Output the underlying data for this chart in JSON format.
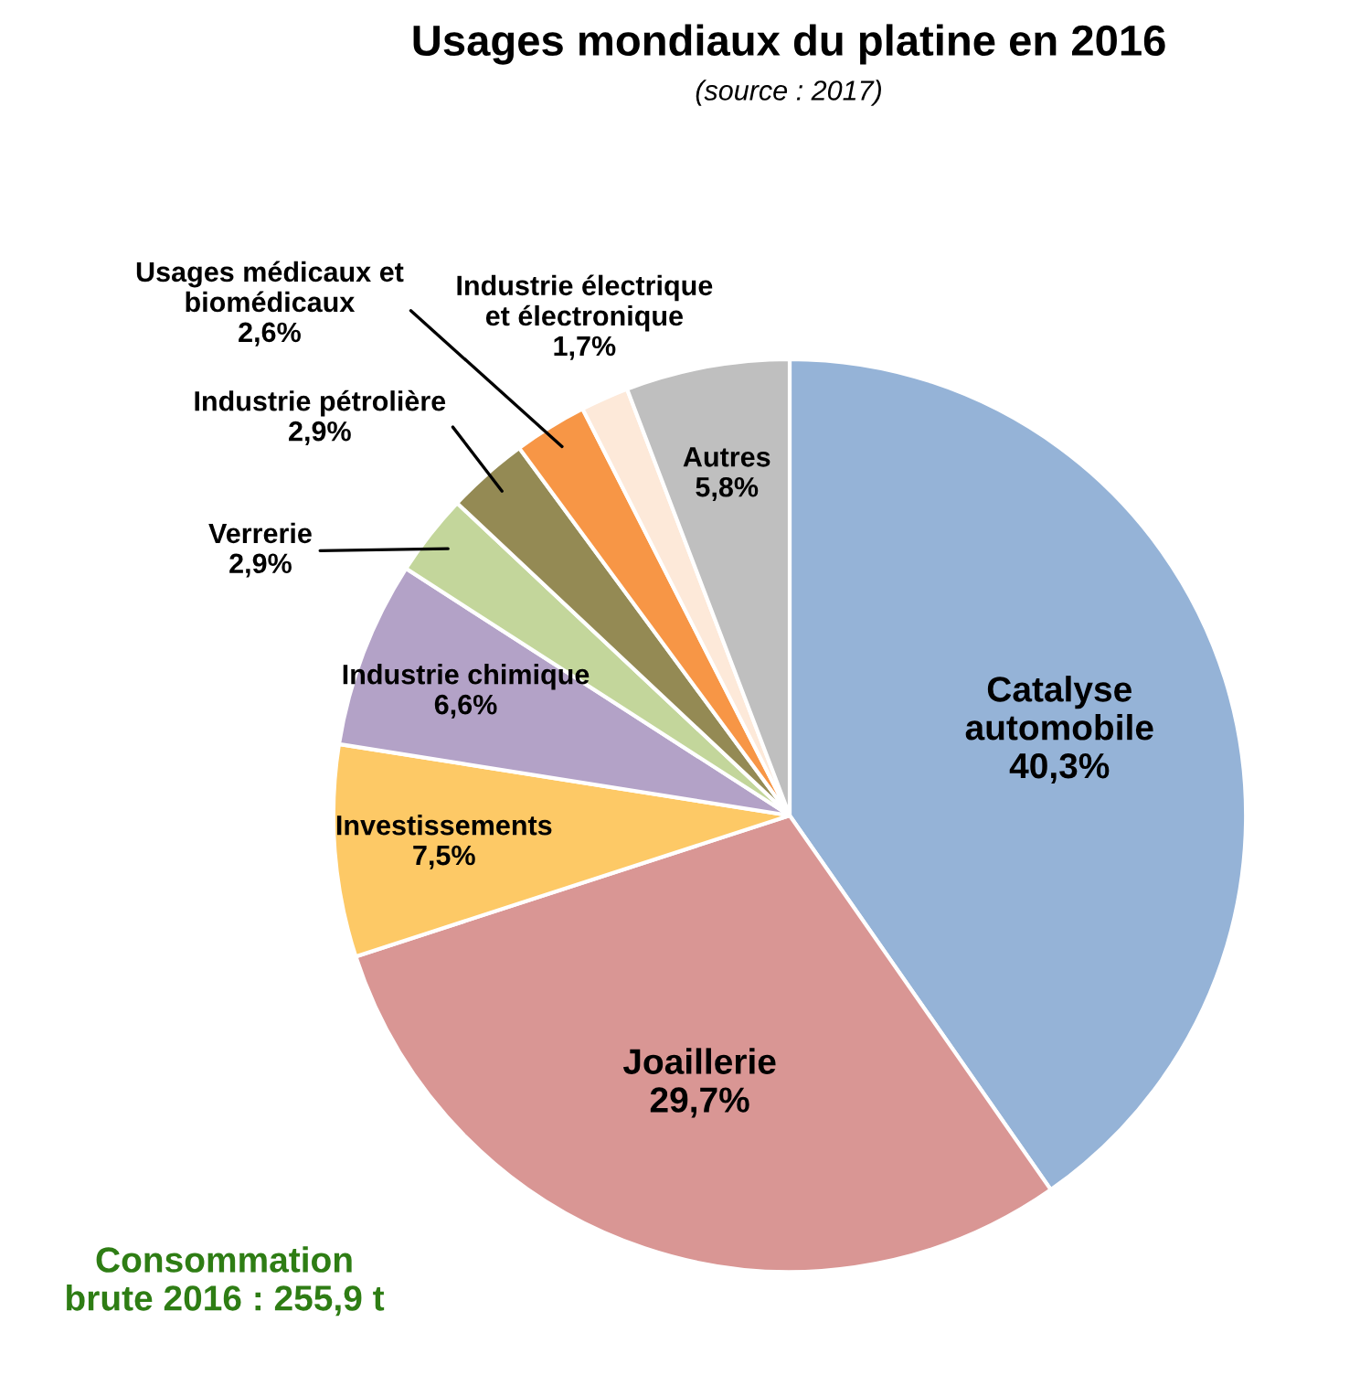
{
  "chart_data": {
    "type": "pie",
    "title": "Usages mondiaux du platine en 2016",
    "subtitle": "(source : 2017)",
    "categories": [
      "Catalyse\nautomobile",
      "Joaillerie",
      "Investissements",
      "Industrie chimique",
      "Verrerie",
      "Industrie pétrolière",
      "Usages médicaux et\nbiomédicaux",
      "Industrie électrique\net électronique",
      "Autres"
    ],
    "values": [
      40.3,
      29.7,
      7.5,
      6.6,
      2.9,
      2.9,
      2.6,
      1.7,
      5.8
    ],
    "colors": [
      "#95b3d7",
      "#d99694",
      "#fdc966",
      "#b3a2c7",
      "#c3d69b",
      "#948a54",
      "#f79646",
      "#fde9d9",
      "#bfbfbf"
    ],
    "value_labels": [
      "40,3%",
      "29,7%",
      "7,5%",
      "6,6%",
      "2,9%",
      "2,9%",
      "2,6%",
      "1,7%",
      "5,8%"
    ],
    "annotations": [
      "Consommation\nbrute 2016 : 255,9 t"
    ]
  }
}
